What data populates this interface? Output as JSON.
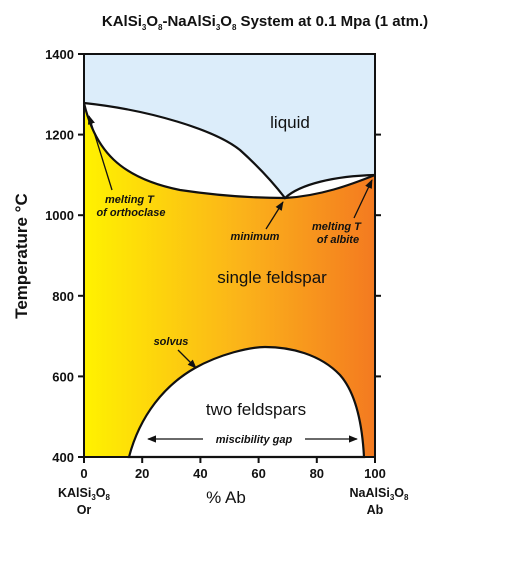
{
  "title": {
    "p1": "KAlSi",
    "s1": "3",
    "p2": "O",
    "s2": "8",
    "p3": "-NaAlSi",
    "s3": "3",
    "p4": "O",
    "s4": "8",
    "p5": " System at 0.1 Mpa (1 atm.)"
  },
  "y_axis": {
    "label": "Temperature °C",
    "ticks": [
      "1400",
      "1200",
      "1000",
      "800",
      "600",
      "400"
    ]
  },
  "x_axis": {
    "label": "% Ab",
    "ticks": [
      "0",
      "20",
      "40",
      "60",
      "80",
      "100"
    ]
  },
  "endmembers": {
    "left_formula": {
      "a": "KAlSi",
      "s1": "3",
      "b": "O",
      "s2": "8"
    },
    "left_abbr": "Or",
    "right_formula": {
      "a": "NaAlSi",
      "s1": "3",
      "b": "O",
      "s2": "8"
    },
    "right_abbr": "Ab"
  },
  "regions": {
    "liquid": "liquid",
    "single_feldspar": "single feldspar",
    "two_feldspars": "two feldspars"
  },
  "annotations": {
    "melting_or_line1": "melting T",
    "melting_or_line2": "of orthoclase",
    "minimum": "minimum",
    "melting_ab_line1": "melting T",
    "melting_ab_line2": "of albite",
    "solvus": "solvus",
    "miscibility_gap": "miscibility gap"
  },
  "colors": {
    "liquid_fill": "#dcedfa",
    "gradient_left": "#fff200",
    "gradient_mid": "#fbb21a",
    "gradient_right": "#f47a20",
    "lines": "#111111"
  }
}
